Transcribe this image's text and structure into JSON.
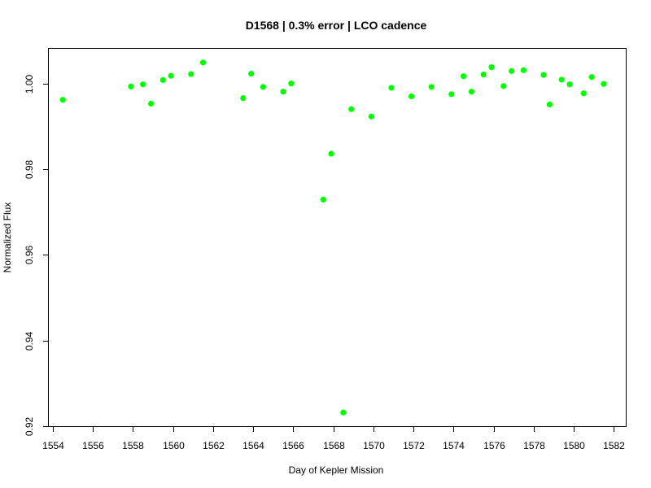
{
  "chart_data": {
    "type": "scatter",
    "title": "D1568 | 0.3% error | LCO cadence",
    "xlabel": "Day of Kepler Mission",
    "ylabel": "Normalized Flux",
    "xlim": [
      1553.8,
      1582.6
    ],
    "ylim": [
      0.92,
      1.0081
    ],
    "xticks": [
      1554,
      1556,
      1558,
      1560,
      1562,
      1564,
      1566,
      1568,
      1570,
      1572,
      1574,
      1576,
      1578,
      1580,
      1582
    ],
    "yticks": [
      0.92,
      0.94,
      0.96,
      0.98,
      1.0
    ],
    "ytick_labels": [
      "0.92",
      "0.94",
      "0.96",
      "0.98",
      "1.00"
    ],
    "grid": false,
    "point_color": "#00ff00",
    "series": [
      {
        "x": [
          1554.5,
          1557.9,
          1558.5,
          1558.9,
          1559.5,
          1559.9,
          1560.9,
          1561.5,
          1563.5,
          1563.9,
          1564.5,
          1565.5,
          1565.9,
          1567.5,
          1567.9,
          1568.5,
          1568.9,
          1569.9,
          1570.9,
          1571.9,
          1572.9,
          1573.9,
          1574.5,
          1574.9,
          1575.5,
          1575.9,
          1576.5,
          1576.9,
          1577.5,
          1578.5,
          1578.8,
          1579.4,
          1579.8,
          1580.5,
          1580.9,
          1581.5
        ],
        "y": [
          0.9962,
          0.9993,
          0.9998,
          0.9953,
          1.0008,
          1.0018,
          1.0022,
          1.0049,
          0.9966,
          1.0023,
          0.9992,
          0.9981,
          1.0,
          0.9729,
          0.9836,
          0.9232,
          0.994,
          0.9923,
          0.999,
          0.997,
          0.9992,
          0.9975,
          1.0017,
          0.9981,
          1.0021,
          1.0038,
          0.9994,
          1.0029,
          1.0031,
          1.002,
          0.9951,
          1.0009,
          0.9998,
          0.9977,
          1.0015,
          0.9999
        ]
      }
    ]
  }
}
